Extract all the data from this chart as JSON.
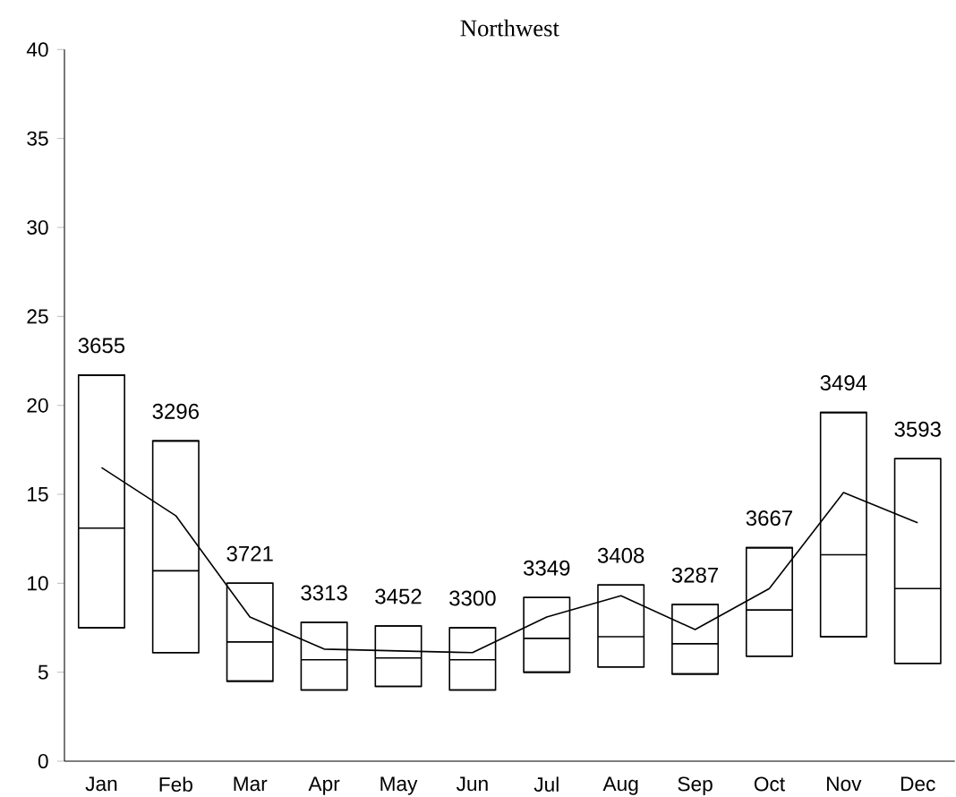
{
  "chart_data": {
    "type": "box",
    "title": "Northwest",
    "categories": [
      "Jan",
      "Feb",
      "Mar",
      "Apr",
      "May",
      "Jun",
      "Jul",
      "Aug",
      "Sep",
      "Oct",
      "Nov",
      "Dec"
    ],
    "series": [
      {
        "color": "#000000",
        "boxes": [
          {
            "low": 7.5,
            "q1": 7.5,
            "median": 13.1,
            "q3": 21.7,
            "high": 21.7
          },
          {
            "low": 6.1,
            "q1": 6.1,
            "median": 10.7,
            "q3": 18.0,
            "high": 18.0
          },
          {
            "low": 4.5,
            "q1": 4.5,
            "median": 6.7,
            "q3": 10.0,
            "high": 10.0
          },
          {
            "low": 4.0,
            "q1": 4.0,
            "median": 5.7,
            "q3": 7.8,
            "high": 7.8
          },
          {
            "low": 4.2,
            "q1": 4.2,
            "median": 5.8,
            "q3": 7.6,
            "high": 7.6
          },
          {
            "low": 4.0,
            "q1": 4.0,
            "median": 5.7,
            "q3": 7.5,
            "high": 7.5
          },
          {
            "low": 5.0,
            "q1": 5.0,
            "median": 6.9,
            "q3": 9.2,
            "high": 9.2
          },
          {
            "low": 5.3,
            "q1": 5.3,
            "median": 7.0,
            "q3": 9.9,
            "high": 9.9
          },
          {
            "low": 4.9,
            "q1": 4.9,
            "median": 6.6,
            "q3": 8.8,
            "high": 8.8
          },
          {
            "low": 5.9,
            "q1": 5.9,
            "median": 8.5,
            "q3": 12.0,
            "high": 12.0
          },
          {
            "low": 7.0,
            "q1": 7.0,
            "median": 11.6,
            "q3": 19.6,
            "high": 19.6
          },
          {
            "low": 5.5,
            "q1": 5.5,
            "median": 9.7,
            "q3": 17.0,
            "high": 17.0
          }
        ]
      },
      {
        "type": "line",
        "color": "#000000",
        "values": [
          16.5,
          13.8,
          8.1,
          6.3,
          6.2,
          6.1,
          8.1,
          9.3,
          7.4,
          9.7,
          15.1,
          13.4
        ]
      }
    ],
    "ylim": [
      0,
      40
    ],
    "yticks": [
      0,
      5,
      10,
      15,
      20,
      25,
      30,
      35,
      40
    ],
    "annotations": [
      "3655",
      "3296",
      "3721",
      "3313",
      "3452",
      "3300",
      "3349",
      "3408",
      "3287",
      "3667",
      "3494",
      "3593"
    ]
  }
}
